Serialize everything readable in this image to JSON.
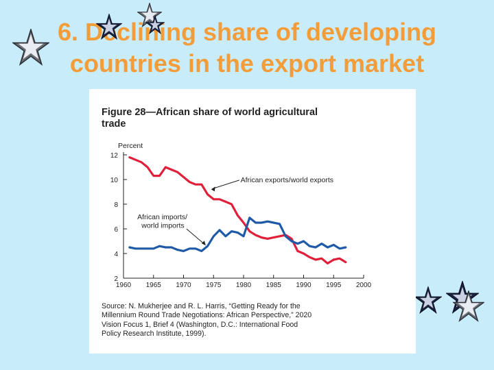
{
  "slide": {
    "title_line1": "6. Declining share of developing",
    "title_line2": "countries in the export market",
    "title_color": "#f39c3a",
    "background_color": "#c9ecfb"
  },
  "figure": {
    "title_line1": "Figure 28—African share of world agricultural",
    "title_line2": "trade",
    "source_lines": [
      "Source: N. Mukherjee and R. L. Harris, “Getting Ready for the",
      "Millennium Round Trade Negotiations: African Perspective,” 2020",
      "Vision Focus 1, Brief 4 (Washington, D.C.: International Food",
      "Policy Research Institute, 1999)."
    ]
  },
  "chart_data": {
    "type": "line",
    "ylabel": "Percent",
    "xlabel": "",
    "xlim": [
      1960,
      2000
    ],
    "ylim": [
      2,
      12
    ],
    "x_ticks": [
      1960,
      1965,
      1970,
      1975,
      1980,
      1985,
      1990,
      1995,
      2000
    ],
    "x_tick_labels": [
      "1960",
      "1965",
      "1970",
      "1975",
      "1980",
      "1985",
      "1990",
      "1995",
      "2000"
    ],
    "y_ticks": [
      2,
      4,
      6,
      8,
      10,
      12
    ],
    "y_tick_labels": [
      "2",
      "4",
      "6",
      "8",
      "10",
      "12"
    ],
    "grid": false,
    "series": [
      {
        "name": "African exports/world exports",
        "color": "#e0203a",
        "x": [
          1961,
          1962,
          1963,
          1964,
          1965,
          1966,
          1967,
          1968,
          1969,
          1970,
          1971,
          1972,
          1973,
          1974,
          1975,
          1976,
          1977,
          1978,
          1979,
          1980,
          1981,
          1982,
          1983,
          1984,
          1985,
          1986,
          1987,
          1988,
          1989,
          1990,
          1991,
          1992,
          1993,
          1994,
          1995,
          1996,
          1997
        ],
        "y": [
          11.8,
          11.6,
          11.4,
          11.0,
          10.3,
          10.3,
          11.0,
          10.8,
          10.6,
          10.2,
          9.8,
          9.6,
          9.6,
          8.8,
          8.4,
          8.4,
          8.2,
          8.0,
          7.1,
          6.5,
          5.8,
          5.5,
          5.3,
          5.2,
          5.3,
          5.4,
          5.5,
          5.2,
          4.2,
          4.0,
          3.7,
          3.5,
          3.6,
          3.2,
          3.5,
          3.6,
          3.3
        ],
        "annotation": "African exports/world exports"
      },
      {
        "name": "African imports/world imports",
        "color": "#1e5aa8",
        "x": [
          1961,
          1962,
          1963,
          1964,
          1965,
          1966,
          1967,
          1968,
          1969,
          1970,
          1971,
          1972,
          1973,
          1974,
          1975,
          1976,
          1977,
          1978,
          1979,
          1980,
          1981,
          1982,
          1983,
          1984,
          1985,
          1986,
          1987,
          1988,
          1989,
          1990,
          1991,
          1992,
          1993,
          1994,
          1995,
          1996,
          1997
        ],
        "y": [
          4.5,
          4.4,
          4.4,
          4.4,
          4.4,
          4.6,
          4.5,
          4.5,
          4.3,
          4.2,
          4.4,
          4.4,
          4.2,
          4.6,
          5.4,
          5.9,
          5.4,
          5.8,
          5.7,
          5.4,
          6.9,
          6.5,
          6.5,
          6.6,
          6.5,
          6.4,
          5.4,
          5.0,
          4.8,
          5.0,
          4.6,
          4.5,
          4.8,
          4.5,
          4.7,
          4.4,
          4.5
        ],
        "annotation_line1": "African imports/",
        "annotation_line2": "world imports"
      }
    ]
  }
}
